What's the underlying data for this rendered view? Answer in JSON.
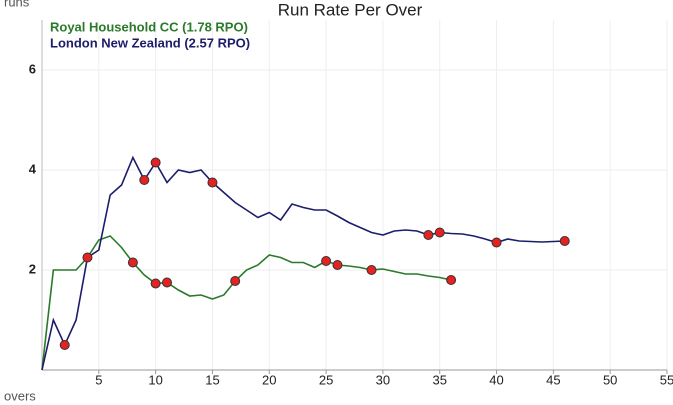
{
  "chart_data": {
    "type": "line",
    "title": "Run Rate Per Over",
    "y_label": "runs",
    "x_label": "overs",
    "xlim": [
      0,
      55
    ],
    "xticks": [
      5,
      10,
      15,
      20,
      25,
      30,
      35,
      40,
      45,
      50,
      55
    ],
    "ylim": [
      0,
      7
    ],
    "yticks": [
      2,
      4,
      6
    ],
    "grid": true,
    "legend": "top-left",
    "wicket_color": "#e52222",
    "series": [
      {
        "name": "Royal Household CC (1.78 RPO)",
        "color": "#2a7a2a",
        "x": [
          0,
          1,
          2,
          3,
          4,
          5,
          6,
          7,
          8,
          9,
          10,
          11,
          12,
          13,
          14,
          15,
          16,
          17,
          18,
          19,
          20,
          21,
          22,
          23,
          24,
          25,
          26,
          27,
          28,
          29,
          30,
          31,
          32,
          33,
          34,
          35,
          36
        ],
        "values": [
          0,
          2,
          2,
          2,
          2.25,
          2.6,
          2.68,
          2.45,
          2.15,
          1.9,
          1.73,
          1.75,
          1.6,
          1.48,
          1.5,
          1.42,
          1.5,
          1.78,
          2.0,
          2.1,
          2.3,
          2.25,
          2.15,
          2.15,
          2.05,
          2.18,
          2.1,
          2.08,
          2.05,
          2.0,
          2.02,
          1.97,
          1.92,
          1.92,
          1.88,
          1.85,
          1.8
        ],
        "wickets": [
          4,
          8,
          10,
          11,
          17,
          25,
          26,
          29,
          36
        ]
      },
      {
        "name": "London New Zealand (2.57 RPO)",
        "color": "#1c1c6b",
        "x": [
          0,
          1,
          2,
          3,
          4,
          5,
          6,
          7,
          8,
          9,
          10,
          11,
          12,
          13,
          14,
          15,
          16,
          17,
          18,
          19,
          20,
          21,
          22,
          23,
          24,
          25,
          26,
          27,
          28,
          29,
          30,
          31,
          32,
          33,
          34,
          35,
          36,
          37,
          38,
          39,
          40,
          41,
          42,
          43,
          44,
          45,
          46
        ],
        "values": [
          0,
          1.0,
          0.5,
          1.0,
          2.25,
          2.4,
          3.5,
          3.7,
          4.25,
          3.8,
          4.15,
          3.75,
          4.0,
          3.95,
          4.0,
          3.75,
          3.55,
          3.35,
          3.2,
          3.05,
          3.15,
          3.0,
          3.32,
          3.25,
          3.2,
          3.2,
          3.08,
          2.95,
          2.85,
          2.75,
          2.7,
          2.78,
          2.8,
          2.78,
          2.7,
          2.75,
          2.73,
          2.72,
          2.68,
          2.62,
          2.55,
          2.62,
          2.58,
          2.57,
          2.56,
          2.57,
          2.58
        ],
        "wickets": [
          2,
          9,
          10,
          15,
          34,
          35,
          40,
          46
        ]
      }
    ]
  }
}
